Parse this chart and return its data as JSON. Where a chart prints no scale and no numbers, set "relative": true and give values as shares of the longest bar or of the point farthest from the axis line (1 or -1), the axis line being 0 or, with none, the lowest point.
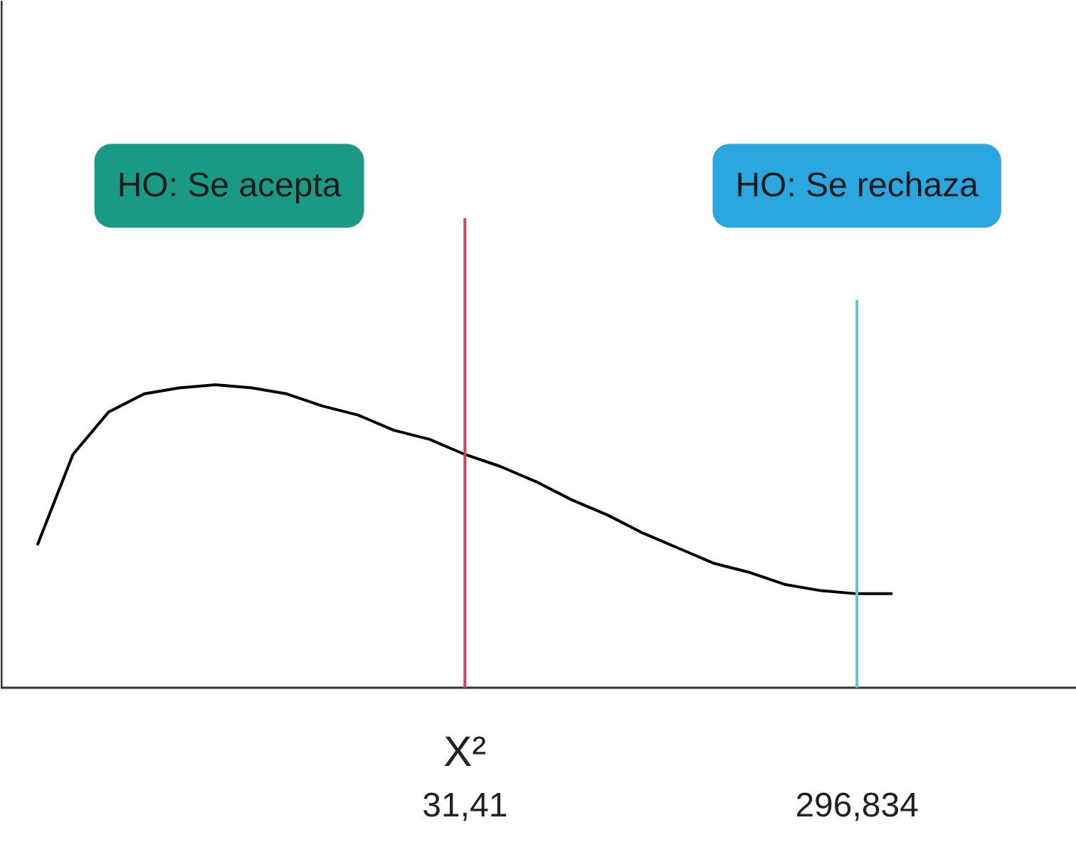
{
  "chart_data": {
    "type": "line",
    "relative": true,
    "categories": [
      null,
      null,
      null,
      null,
      null,
      null,
      null,
      null,
      null,
      null,
      null,
      null,
      "31,41",
      null,
      null,
      null,
      null,
      null,
      null,
      null,
      null,
      null,
      null,
      "296,834",
      null
    ],
    "series": [
      {
        "color": "#000000",
        "values": [
          0.47,
          0.77,
          0.91,
          0.97,
          0.99,
          1.0,
          0.99,
          0.97,
          0.93,
          0.9,
          0.85,
          0.82,
          0.77,
          0.73,
          0.68,
          0.62,
          0.57,
          0.51,
          0.46,
          0.41,
          0.38,
          0.34,
          0.32,
          0.31,
          0.31
        ]
      }
    ],
    "ref_lines": [
      {
        "axis": "x",
        "value": "31,41",
        "color": "#d9434f"
      },
      {
        "axis": "x",
        "value": "296,834",
        "color": "#5bc8d0"
      }
    ],
    "annotations": [
      "X²",
      "HO: Se acepta",
      "HO: Se rechaza"
    ]
  }
}
